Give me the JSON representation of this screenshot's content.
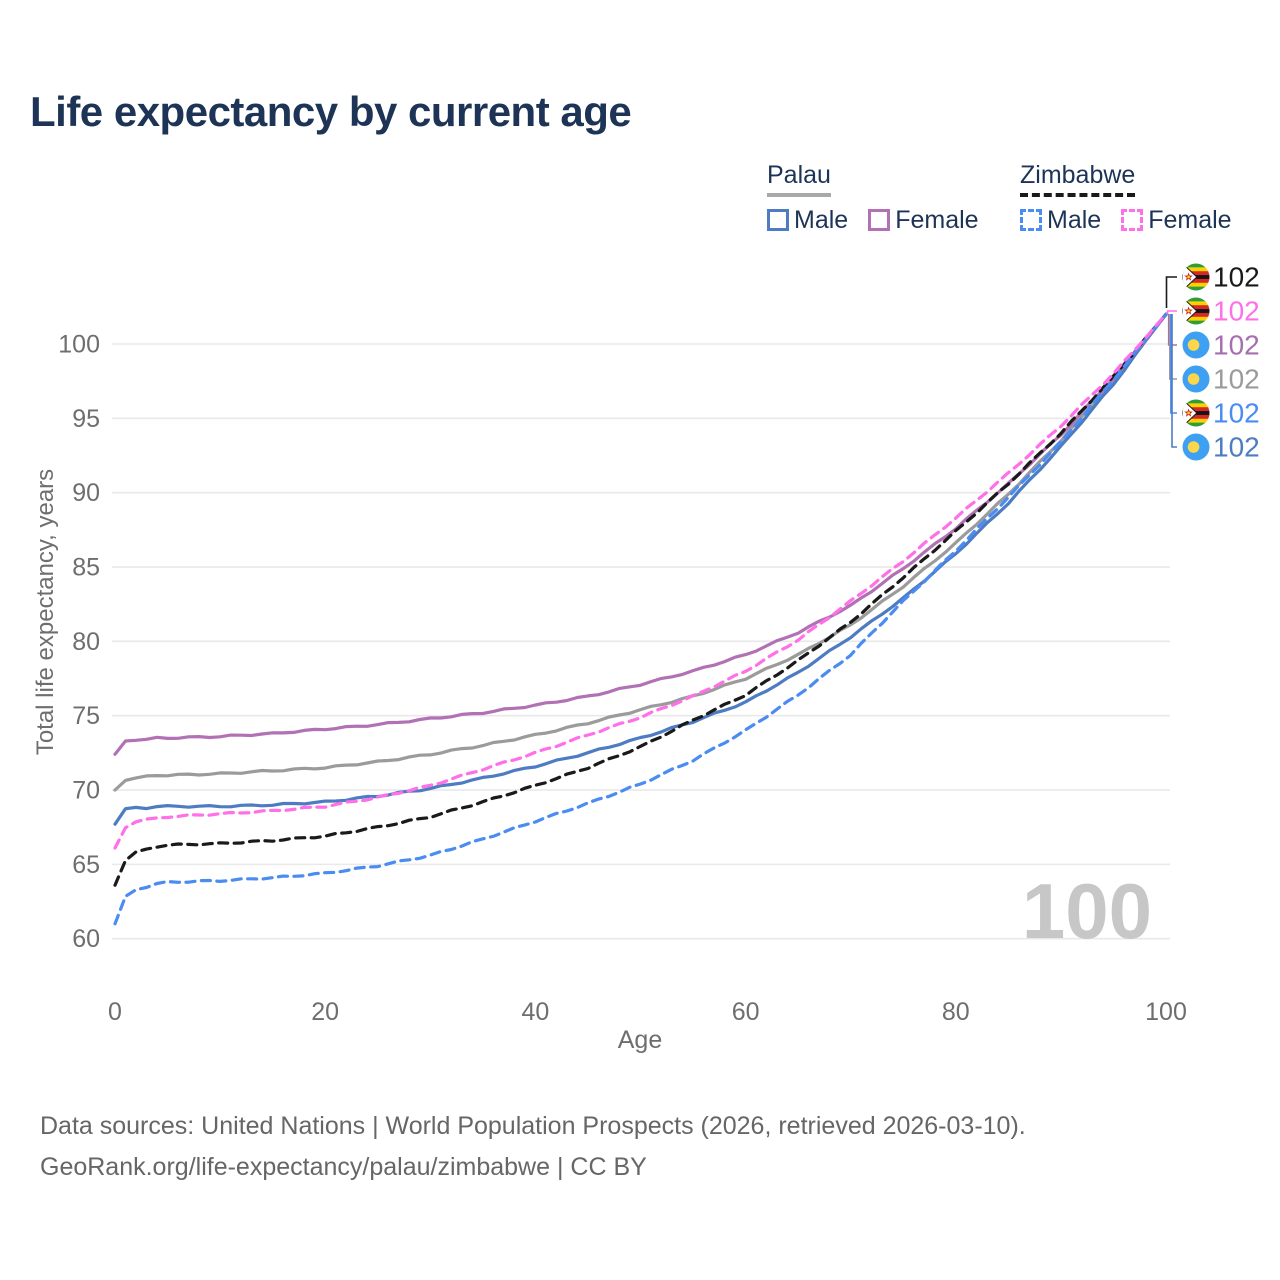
{
  "title": "Life expectancy by current age",
  "watermark": "100",
  "footer": {
    "line1": "Data sources: United Nations | World Population Prospects (2026, retrieved 2026-03-10).",
    "line2": "GeoRank.org/life-expectancy/palau/zimbabwe | CC BY"
  },
  "colors": {
    "title": "#1d3456",
    "axis_text": "#6e6e6e",
    "grid": "#e9e9e9",
    "watermark": "#c7c7c7",
    "footer": "#666666"
  },
  "legend": {
    "groups": [
      {
        "name": "Palau",
        "line_style": "solid",
        "underline_color": "#a9a9a9",
        "items": [
          {
            "label": "Male",
            "color": "#4d7cc3"
          },
          {
            "label": "Female",
            "color": "#b271b5"
          }
        ]
      },
      {
        "name": "Zimbabwe",
        "line_style": "dashed",
        "underline_color": "#1a1a1a",
        "items": [
          {
            "label": "Male",
            "color": "#4b8cf2"
          },
          {
            "label": "Female",
            "color": "#ff70e8"
          }
        ]
      }
    ]
  },
  "chart_data": {
    "type": "line",
    "title": "Life expectancy by current age",
    "xlabel": "Age",
    "ylabel": "Total life expectancy, years",
    "xlim": [
      0,
      100
    ],
    "ylim": [
      60,
      102
    ],
    "x_ticks": [
      0,
      20,
      40,
      60,
      80,
      100
    ],
    "y_ticks": [
      60,
      65,
      70,
      75,
      80,
      85,
      90,
      95,
      100
    ],
    "grid": "horizontal-only",
    "legend_position": "top-right",
    "x": [
      0,
      1,
      2,
      3,
      4,
      5,
      10,
      15,
      20,
      25,
      30,
      35,
      40,
      45,
      50,
      55,
      60,
      65,
      70,
      75,
      80,
      85,
      90,
      95,
      100
    ],
    "series": [
      {
        "id": "palau-both",
        "name": "Palau (both sexes)",
        "country": "Palau",
        "sex": "Both",
        "color": "#9b9b9b",
        "dash": "solid",
        "values": [
          70.0,
          70.7,
          70.8,
          70.9,
          71.0,
          71.0,
          71.1,
          71.3,
          71.5,
          71.9,
          72.4,
          73.0,
          73.7,
          74.5,
          75.4,
          76.3,
          77.5,
          79.1,
          81.1,
          83.7,
          86.6,
          89.9,
          93.5,
          97.5,
          102
        ]
      },
      {
        "id": "palau-male",
        "name": "Palau male",
        "country": "Palau",
        "sex": "Male",
        "color": "#4d7cc3",
        "dash": "solid",
        "values": [
          67.7,
          68.7,
          68.8,
          68.8,
          68.9,
          68.9,
          68.9,
          69.0,
          69.2,
          69.6,
          70.1,
          70.8,
          71.6,
          72.5,
          73.5,
          74.6,
          75.9,
          77.9,
          80.3,
          82.9,
          85.9,
          89.3,
          93.1,
          97.3,
          102
        ]
      },
      {
        "id": "palau-female",
        "name": "Palau female",
        "country": "Palau",
        "sex": "Female",
        "color": "#b271b5",
        "dash": "solid",
        "values": [
          72.4,
          73.3,
          73.4,
          73.4,
          73.5,
          73.5,
          73.6,
          73.8,
          74.1,
          74.4,
          74.8,
          75.2,
          75.7,
          76.3,
          77.1,
          78.0,
          79.1,
          80.6,
          82.4,
          84.9,
          87.6,
          90.6,
          93.9,
          97.7,
          102
        ]
      },
      {
        "id": "zimbabwe-both",
        "name": "Zimbabwe (both sexes)",
        "country": "Zimbabwe",
        "sex": "Both",
        "color": "#1a1a1a",
        "dash": "dashed",
        "values": [
          63.6,
          65.3,
          65.8,
          66.0,
          66.2,
          66.3,
          66.4,
          66.6,
          66.9,
          67.5,
          68.2,
          69.2,
          70.3,
          71.5,
          72.9,
          74.7,
          76.4,
          78.7,
          81.3,
          84.3,
          87.4,
          90.6,
          94.0,
          97.8,
          102
        ]
      },
      {
        "id": "zimbabwe-male",
        "name": "Zimbabwe male",
        "country": "Zimbabwe",
        "sex": "Male",
        "color": "#4b8cf2",
        "dash": "dashed",
        "values": [
          61.0,
          62.8,
          63.3,
          63.5,
          63.7,
          63.8,
          63.9,
          64.1,
          64.4,
          64.9,
          65.6,
          66.7,
          67.9,
          69.1,
          70.4,
          72.0,
          74.0,
          76.4,
          79.1,
          82.7,
          86.1,
          89.7,
          93.4,
          97.6,
          102
        ]
      },
      {
        "id": "zimbabwe-female",
        "name": "Zimbabwe female",
        "country": "Zimbabwe",
        "sex": "Female",
        "color": "#ff70e8",
        "dash": "dashed",
        "values": [
          66.1,
          67.5,
          67.9,
          68.0,
          68.1,
          68.2,
          68.4,
          68.6,
          68.9,
          69.5,
          70.3,
          71.4,
          72.5,
          73.7,
          74.9,
          76.3,
          78.0,
          80.1,
          82.7,
          85.4,
          88.3,
          91.3,
          94.5,
          98.0,
          102
        ]
      }
    ],
    "end_labels": [
      {
        "series": "Zimbabwe (both sexes)",
        "flag": "zimbabwe",
        "value": "102",
        "color": "#1a1a1a"
      },
      {
        "series": "Zimbabwe female",
        "flag": "zimbabwe",
        "value": "102",
        "color": "#ff70e8"
      },
      {
        "series": "Palau female",
        "flag": "palau",
        "value": "102",
        "color": "#a66fb0"
      },
      {
        "series": "Palau (both sexes)",
        "flag": "palau",
        "value": "102",
        "color": "#9b9b9b"
      },
      {
        "series": "Zimbabwe male",
        "flag": "zimbabwe",
        "value": "102",
        "color": "#4b8cf2"
      },
      {
        "series": "Palau male",
        "flag": "palau",
        "value": "102",
        "color": "#4d7cc3"
      }
    ]
  }
}
